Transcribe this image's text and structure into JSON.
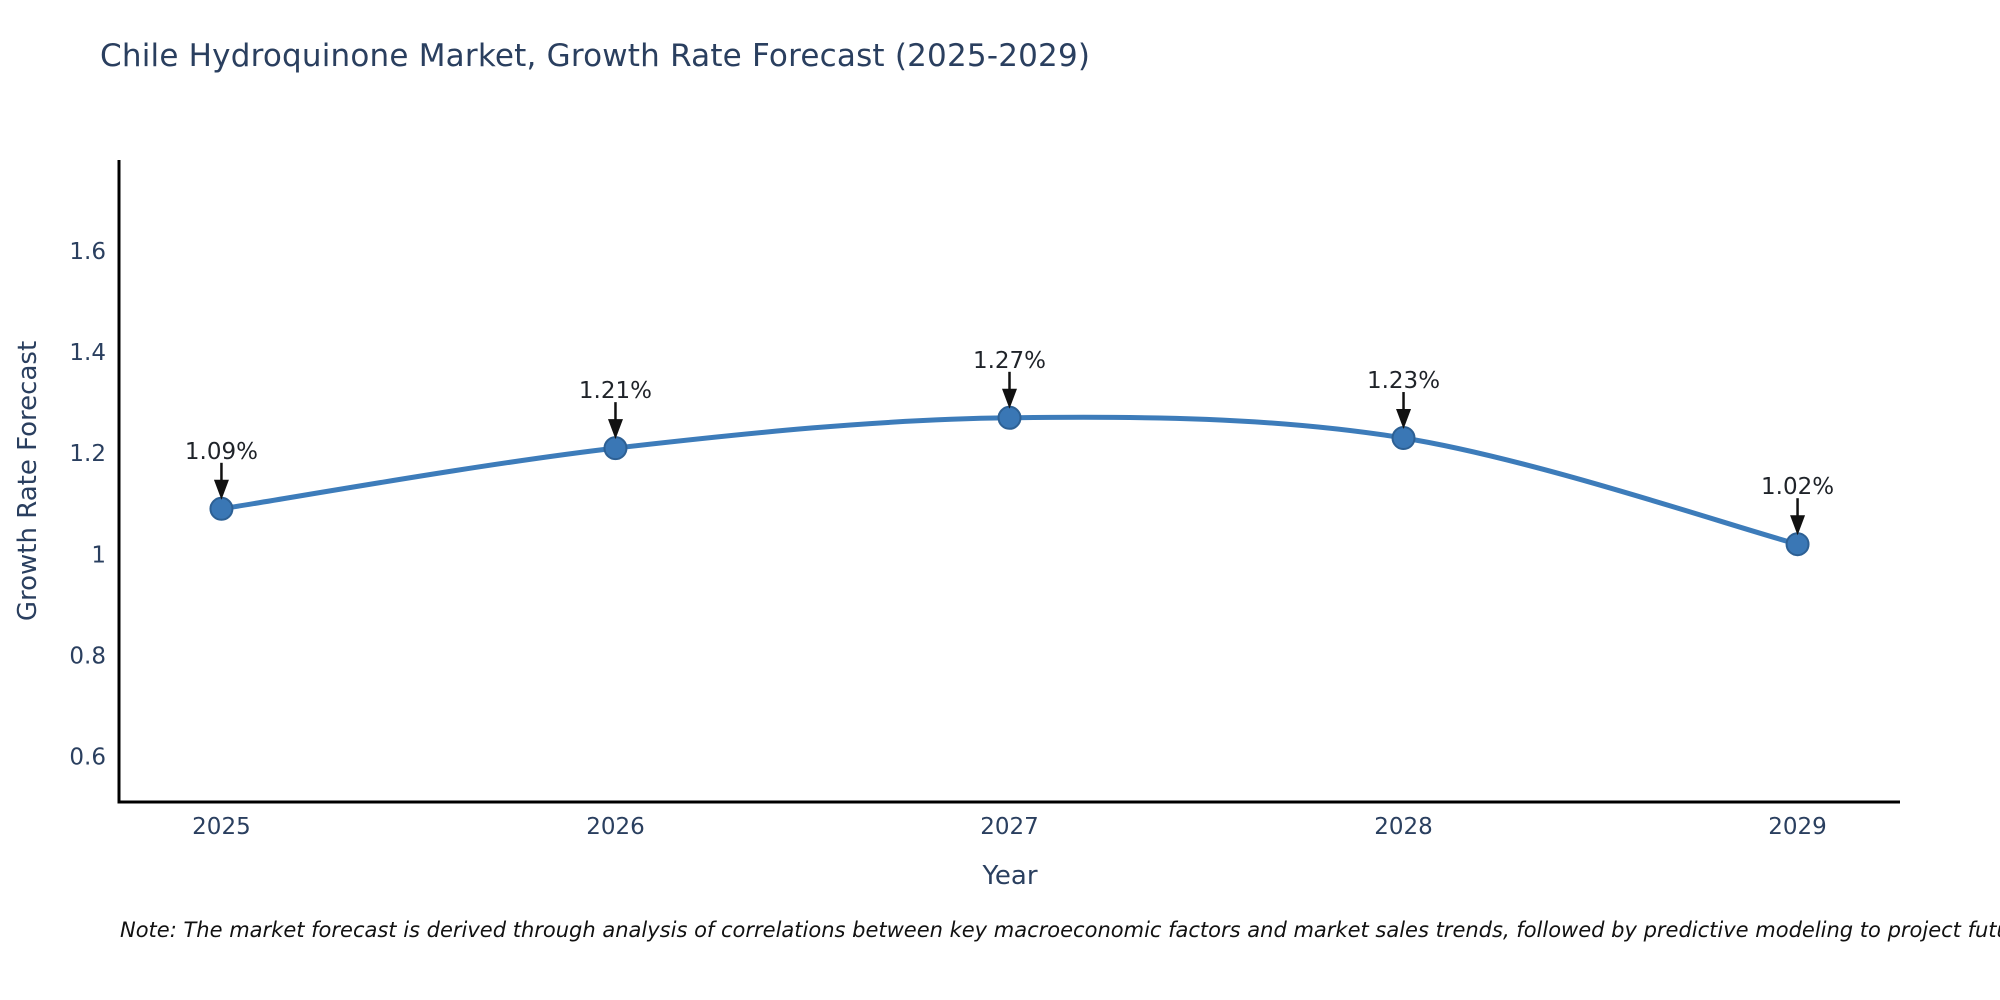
{
  "figure": {
    "note": "Note: The market forecast is derived through analysis of correlations between key macroeconomic factors and market sales trends, followed by predictive modeling to project future sales"
  },
  "chart_data": {
    "type": "line",
    "title": "Chile Hydroquinone Market, Growth Rate Forecast (2025-2029)",
    "xlabel": "Year",
    "ylabel": "Growth Rate Forecast",
    "x": [
      2025,
      2026,
      2027,
      2028,
      2029
    ],
    "series": [
      {
        "name": "Growth Rate Forecast",
        "values": [
          1.09,
          1.21,
          1.27,
          1.23,
          1.02
        ]
      }
    ],
    "point_labels": [
      "1.09%",
      "1.21%",
      "1.27%",
      "1.23%",
      "1.02%"
    ],
    "xticks": [
      "2025",
      "2026",
      "2027",
      "2028",
      "2029"
    ],
    "yticks": [
      0.6,
      0.8,
      1,
      1.2,
      1.4,
      1.6
    ],
    "ytick_labels": [
      "0.6",
      "0.8",
      "1",
      "1.2",
      "1.4",
      "1.6"
    ],
    "xlim": [
      2024.74,
      2029.26
    ],
    "ylim": [
      0.51,
      1.78
    ],
    "grid": false,
    "legend_position": "none",
    "line_shape": "spline",
    "colors": {
      "line": "#3d7cba",
      "marker_fill": "#3a77b5",
      "marker_edge": "#2d6094",
      "axis": "#000000",
      "text": "#2a3f5f",
      "annotation": "#1f2329"
    }
  }
}
